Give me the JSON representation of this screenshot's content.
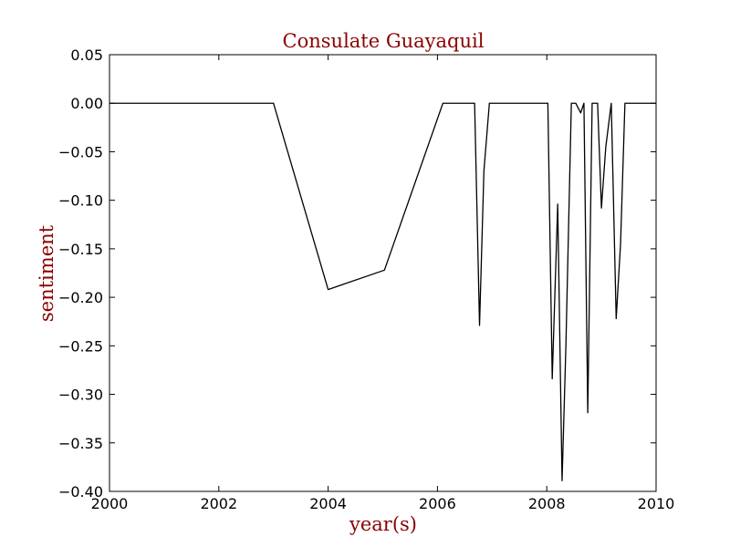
{
  "chart_data": {
    "type": "line",
    "title": "Consulate Guayaquil",
    "xlabel": "year(s)",
    "ylabel": "sentiment",
    "xlim": [
      2000,
      2010
    ],
    "ylim": [
      -0.4,
      0.05
    ],
    "x_ticks": [
      2000,
      2002,
      2004,
      2006,
      2008,
      2010
    ],
    "x_tick_labels": [
      "2000",
      "2002",
      "2004",
      "2006",
      "2008",
      "2010"
    ],
    "y_ticks": [
      0.05,
      0.0,
      -0.05,
      -0.1,
      -0.15,
      -0.2,
      -0.25,
      -0.3,
      -0.35,
      -0.4
    ],
    "y_tick_labels": [
      "0.05",
      "0.00",
      "−0.05",
      "−0.10",
      "−0.15",
      "−0.20",
      "−0.25",
      "−0.30",
      "−0.35",
      "−0.40"
    ],
    "grid": false,
    "line_color": "#000000",
    "title_color": "#8b0000",
    "series": [
      {
        "x": [
          2000.0,
          2003.0,
          2004.0,
          2005.03,
          2006.1,
          2006.68,
          2006.77,
          2006.85,
          2006.95,
          2008.02,
          2008.1,
          2008.2,
          2008.28,
          2008.35,
          2008.45,
          2008.53,
          2008.62,
          2008.68,
          2008.75,
          2008.83,
          2008.93,
          2009.0,
          2009.08,
          2009.18,
          2009.27,
          2009.35,
          2009.43,
          2009.52,
          2010.0
        ],
        "y": [
          0.0,
          0.0,
          -0.192,
          -0.172,
          0.0,
          0.0,
          -0.229,
          -0.07,
          0.0,
          0.0,
          -0.284,
          -0.104,
          -0.389,
          -0.25,
          0.0,
          0.0,
          -0.01,
          0.0,
          -0.319,
          0.0,
          0.0,
          -0.108,
          -0.045,
          0.0,
          -0.222,
          -0.145,
          0.0,
          0.0,
          0.0
        ]
      }
    ]
  }
}
